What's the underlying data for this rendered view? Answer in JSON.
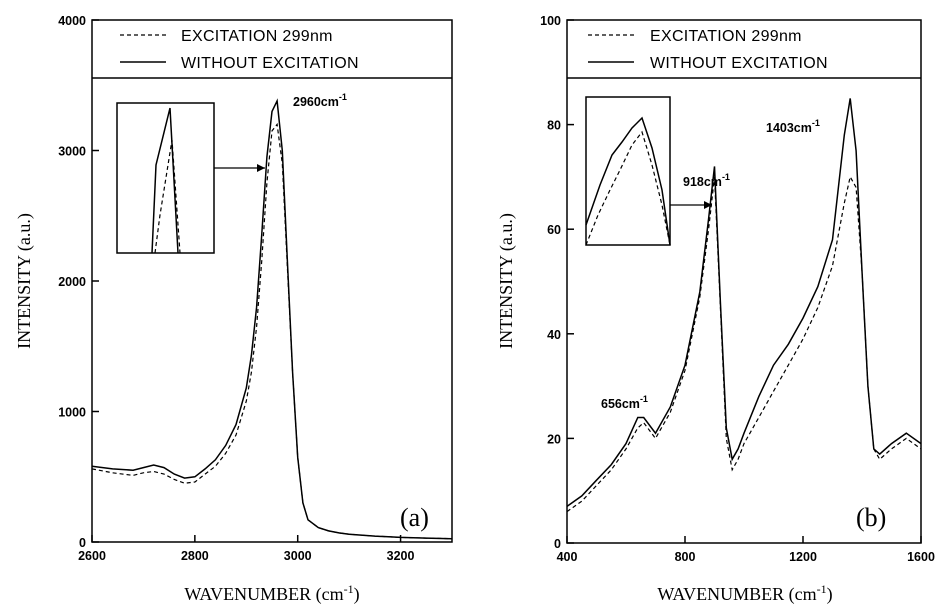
{
  "chart_data": [
    {
      "type": "line",
      "panel_label": "(a)",
      "xlabel": "WAVENUMBER (cm",
      "xlabel_sup": "-1",
      "xlabel_tail": ")",
      "ylabel": "INTENSITY (a.u.)",
      "xlim": [
        2600,
        3300
      ],
      "ylim": [
        0,
        4000
      ],
      "xticks": [
        2600,
        2800,
        3000,
        3200
      ],
      "yticks": [
        0,
        1000,
        2000,
        3000,
        4000
      ],
      "grid": false,
      "legend_position": "top",
      "series": [
        {
          "name": "EXCITATION 299nm",
          "style": "dashed",
          "x": [
            2600,
            2640,
            2680,
            2700,
            2720,
            2740,
            2760,
            2780,
            2800,
            2820,
            2840,
            2860,
            2880,
            2900,
            2910,
            2920,
            2930,
            2940,
            2950,
            2960,
            2970,
            2980,
            2990,
            3000,
            3010,
            3020,
            3040,
            3060,
            3080,
            3100,
            3150,
            3200,
            3250,
            3300
          ],
          "y": [
            560,
            530,
            510,
            530,
            540,
            520,
            480,
            450,
            460,
            520,
            580,
            680,
            820,
            1080,
            1300,
            1650,
            2150,
            2750,
            3150,
            3200,
            2900,
            2100,
            1300,
            650,
            300,
            170,
            110,
            85,
            70,
            60,
            45,
            35,
            30,
            25
          ]
        },
        {
          "name": "WITHOUT EXCITATION",
          "style": "solid",
          "x": [
            2600,
            2640,
            2680,
            2700,
            2720,
            2740,
            2760,
            2780,
            2800,
            2820,
            2840,
            2860,
            2880,
            2900,
            2910,
            2920,
            2930,
            2940,
            2950,
            2960,
            2970,
            2980,
            2990,
            3000,
            3010,
            3020,
            3040,
            3060,
            3080,
            3100,
            3150,
            3200,
            3250,
            3300
          ],
          "y": [
            580,
            560,
            550,
            570,
            590,
            570,
            520,
            490,
            500,
            560,
            630,
            740,
            900,
            1180,
            1430,
            1800,
            2350,
            2950,
            3300,
            3380,
            3000,
            2150,
            1300,
            650,
            300,
            170,
            110,
            85,
            70,
            60,
            45,
            35,
            30,
            25
          ]
        }
      ],
      "annotations": [
        {
          "text": "2960cm",
          "sup": "-1"
        }
      ]
    },
    {
      "type": "line",
      "panel_label": "(b)",
      "xlabel": "WAVENUMBER (cm",
      "xlabel_sup": "-1",
      "xlabel_tail": ")",
      "ylabel": "INTENSITY (a.u.)",
      "xlim": [
        400,
        1600
      ],
      "ylim": [
        0,
        100
      ],
      "xticks": [
        400,
        800,
        1200,
        1600
      ],
      "yticks": [
        0,
        20,
        40,
        60,
        80,
        100
      ],
      "grid": false,
      "legend_position": "top",
      "series": [
        {
          "name": "EXCITATION 299nm",
          "style": "dashed",
          "x": [
            400,
            450,
            500,
            550,
            600,
            640,
            660,
            700,
            750,
            800,
            850,
            880,
            900,
            920,
            940,
            960,
            980,
            1000,
            1050,
            1100,
            1150,
            1200,
            1250,
            1300,
            1340,
            1360,
            1380,
            1400,
            1420,
            1440,
            1460,
            1500,
            1550,
            1600
          ],
          "y": [
            6,
            8,
            11,
            14,
            18,
            22,
            23,
            20,
            25,
            33,
            47,
            60,
            70,
            45,
            20,
            14,
            16,
            19,
            24,
            29,
            34,
            39,
            45,
            53,
            65,
            70,
            68,
            52,
            30,
            18,
            16,
            18,
            20,
            18
          ]
        },
        {
          "name": "WITHOUT EXCITATION",
          "style": "solid",
          "x": [
            400,
            450,
            500,
            550,
            600,
            640,
            660,
            700,
            750,
            800,
            850,
            880,
            900,
            920,
            940,
            960,
            980,
            1000,
            1050,
            1100,
            1150,
            1200,
            1250,
            1300,
            1340,
            1360,
            1380,
            1400,
            1420,
            1440,
            1460,
            1500,
            1550,
            1600
          ],
          "y": [
            7,
            9,
            12,
            15,
            19,
            24,
            24,
            21,
            26,
            34,
            48,
            62,
            72,
            46,
            22,
            16,
            18,
            21,
            28,
            34,
            38,
            43,
            49,
            58,
            78,
            85,
            75,
            52,
            30,
            18,
            17,
            19,
            21,
            19
          ]
        }
      ],
      "annotations": [
        {
          "text": "656cm",
          "sup": "-1"
        },
        {
          "text": "918cm",
          "sup": "-1"
        },
        {
          "text": "1403cm",
          "sup": "-1"
        }
      ]
    }
  ]
}
